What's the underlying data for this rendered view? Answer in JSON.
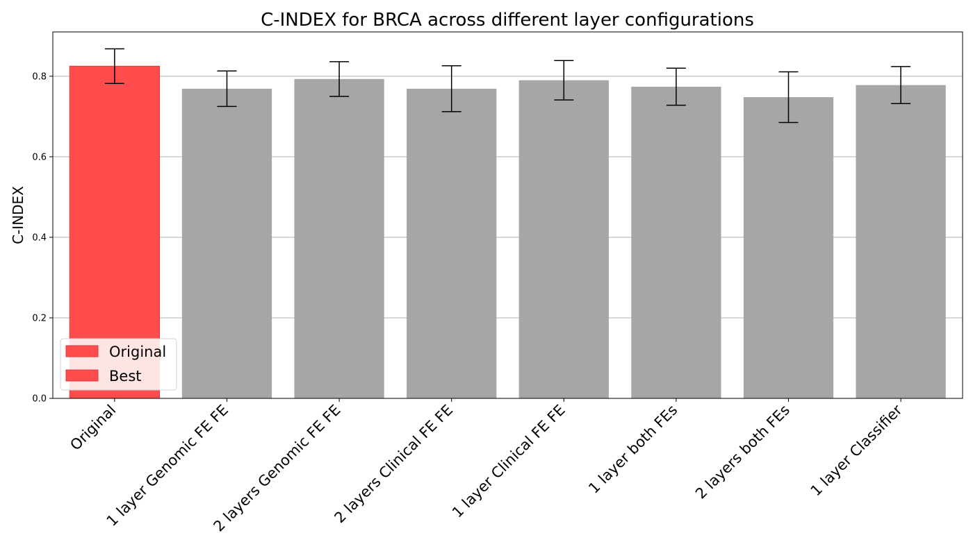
{
  "chart_data": {
    "type": "bar",
    "title": "C-INDEX for BRCA across different layer configurations",
    "xlabel": "",
    "ylabel": "C-INDEX",
    "ylim": [
      0,
      0.91
    ],
    "yticks": [
      "0.0",
      "0.2",
      "0.4",
      "0.6",
      "0.8"
    ],
    "categories": [
      "Original",
      "1 layer Genomic FE FE",
      "2 layers Genomic FE FE",
      "2 layers Clinical FE FE",
      "1 layer Clinical FE FE",
      "1 layer both FEs",
      "2 layers both FEs",
      "1 layer Classifier"
    ],
    "values": [
      0.825,
      0.769,
      0.793,
      0.769,
      0.79,
      0.774,
      0.748,
      0.778
    ],
    "errors": [
      0.043,
      0.044,
      0.043,
      0.057,
      0.049,
      0.046,
      0.063,
      0.046
    ],
    "bar_colors": [
      "#ff4d4d",
      "#a6a6a6",
      "#a6a6a6",
      "#a6a6a6",
      "#a6a6a6",
      "#a6a6a6",
      "#a6a6a6",
      "#a6a6a6"
    ],
    "bar_edge_highlight": "#e03a3a",
    "legend": {
      "placement": "lower-left",
      "entries": [
        {
          "label": "Original",
          "color": "#ff4d4d"
        },
        {
          "label": "Best",
          "color": "#ff4d4d"
        }
      ]
    },
    "grid": {
      "y": true,
      "x": false
    }
  }
}
